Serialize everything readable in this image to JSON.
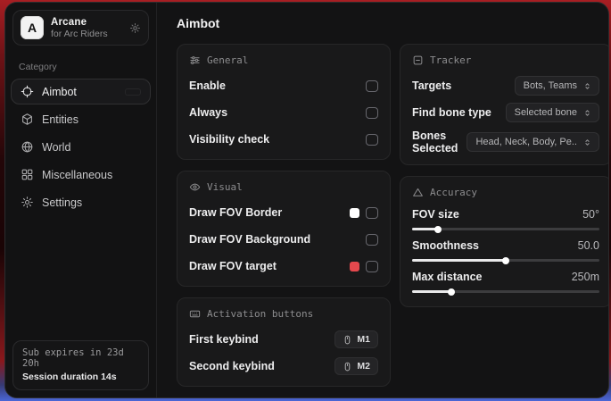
{
  "brand": {
    "logo_letter": "A",
    "name": "Arcane",
    "subtitle": "for Arc Riders"
  },
  "sidebar": {
    "category_label": "Category",
    "items": [
      {
        "label": "Aimbot",
        "icon": "crosshair-icon",
        "selected": true
      },
      {
        "label": "Entities",
        "icon": "cube-icon",
        "selected": false
      },
      {
        "label": "World",
        "icon": "globe-icon",
        "selected": false
      },
      {
        "label": "Miscellaneous",
        "icon": "grid-icon",
        "selected": false
      },
      {
        "label": "Settings",
        "icon": "gear-icon",
        "selected": false
      }
    ],
    "subscription": {
      "expires": "Sub expires in 23d 20h",
      "session": "Session duration 14s"
    }
  },
  "main": {
    "title": "Aimbot",
    "general": {
      "header": "General",
      "rows": [
        {
          "label": "Enable",
          "checked": false
        },
        {
          "label": "Always",
          "checked": false
        },
        {
          "label": "Visibility check",
          "checked": false
        }
      ]
    },
    "visual": {
      "header": "Visual",
      "rows": [
        {
          "label": "Draw FOV Border",
          "swatch": "#ffffff",
          "checked": false
        },
        {
          "label": "Draw FOV Background",
          "checked": false
        },
        {
          "label": "Draw FOV target",
          "swatch": "#e5484d",
          "checked": false
        }
      ]
    },
    "activation": {
      "header": "Activation buttons",
      "rows": [
        {
          "label": "First keybind",
          "key": "M1"
        },
        {
          "label": "Second keybind",
          "key": "M2"
        }
      ]
    },
    "tracker": {
      "header": "Tracker",
      "rows": [
        {
          "label": "Targets",
          "value": "Bots, Teams"
        },
        {
          "label": "Find bone type",
          "value": "Selected bone"
        },
        {
          "label": "Bones Selected",
          "value": "Head, Neck, Body, Pe.."
        }
      ]
    },
    "accuracy": {
      "header": "Accuracy",
      "sliders": [
        {
          "label": "FOV size",
          "value": "50°",
          "fill": 14
        },
        {
          "label": "Smoothness",
          "value": "50.0",
          "fill": 50
        },
        {
          "label": "Max distance",
          "value": "250m",
          "fill": 21
        }
      ]
    }
  },
  "colors": {
    "accent_red": "#e5484d",
    "swatch_white": "#ffffff"
  }
}
